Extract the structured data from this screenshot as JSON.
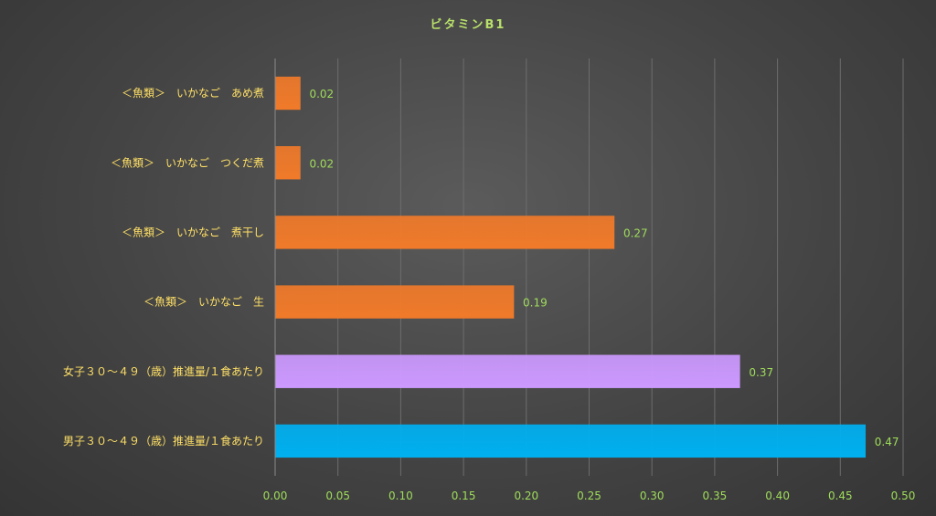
{
  "chart_data": {
    "type": "bar",
    "orientation": "horizontal",
    "title": "ビタミンB1",
    "categories": [
      "＜魚類＞　いかなご　あめ煮",
      "＜魚類＞　いかなご　つくだ煮",
      "＜魚類＞　いかなご　煮干し",
      "＜魚類＞　いかなご　生",
      "女子３０～４９（歳）推進量/１食あたり",
      "男子３０～４９（歳）推進量/１食あたり"
    ],
    "values": [
      0.02,
      0.02,
      0.27,
      0.19,
      0.37,
      0.47
    ],
    "data_labels": [
      "0.02",
      "0.02",
      "0.27",
      "0.19",
      "0.37",
      "0.47"
    ],
    "bar_colors": [
      "#f07a2a",
      "#f07a2a",
      "#f07a2a",
      "#f07a2a",
      "#cc99ff",
      "#00b0f0"
    ],
    "xlim": [
      0,
      0.5
    ],
    "xticks": [
      "0.00",
      "0.05",
      "0.10",
      "0.15",
      "0.20",
      "0.25",
      "0.30",
      "0.35",
      "0.40",
      "0.45",
      "0.50"
    ],
    "grid": true,
    "legend": "none"
  }
}
